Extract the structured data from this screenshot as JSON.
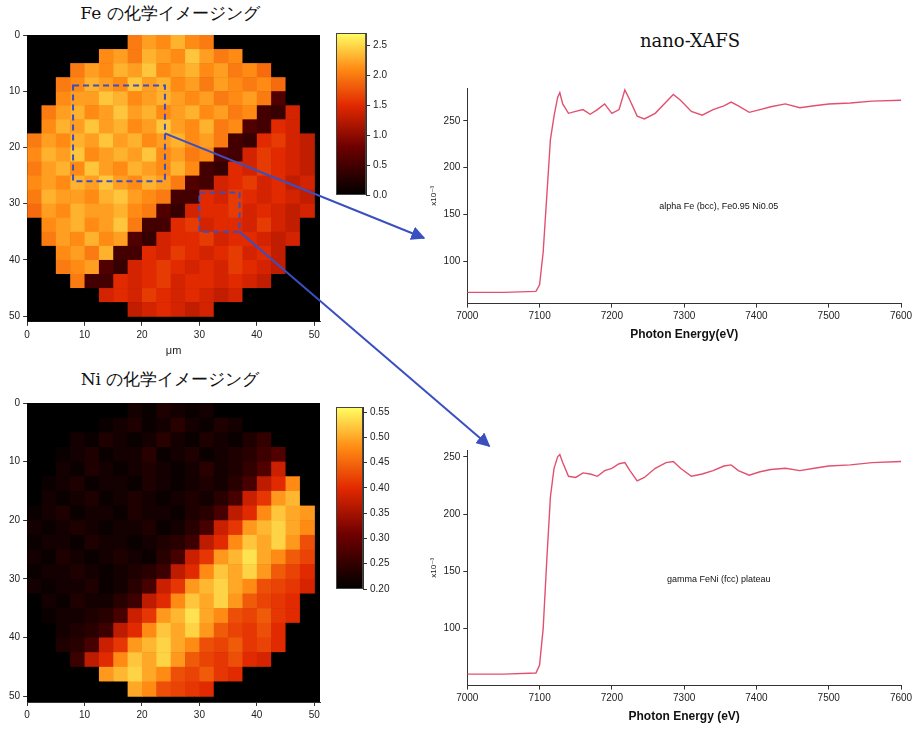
{
  "chart_data": [
    {
      "type": "heatmap",
      "title": "Fe の化学イメージング",
      "x_label": "μm",
      "x": [
        1.25,
        3.75,
        6.25,
        8.75,
        11.25,
        13.75,
        16.25,
        18.75,
        21.25,
        23.75,
        26.25,
        28.75,
        31.25,
        33.75,
        36.25,
        38.75,
        41.25,
        43.75,
        46.25,
        48.75
      ],
      "y": [
        1.25,
        3.75,
        6.25,
        8.75,
        11.25,
        13.75,
        16.25,
        18.75,
        21.25,
        23.75,
        26.25,
        28.75,
        31.25,
        33.75,
        36.25,
        38.75,
        41.25,
        43.75,
        46.25,
        48.75
      ],
      "xlim": [
        0,
        51
      ],
      "ylim": [
        0,
        51
      ],
      "xticks": [
        0,
        10,
        20,
        30,
        40,
        50
      ],
      "yticks": [
        0,
        10,
        20,
        30,
        40,
        50
      ],
      "grid": false,
      "colorbar": {
        "range": [
          0,
          2.7
        ],
        "ticks": [
          {
            "value": 0,
            "label": "0.0"
          },
          0.5,
          {
            "value": 1,
            "label": "1.0"
          },
          1.5,
          {
            "value": 2,
            "label": "2.0"
          },
          2.5
        ]
      },
      "cells": [
        [
          0,
          0,
          0,
          0,
          0,
          0,
          0,
          2.0,
          2.2,
          2.1,
          2.3,
          2.1,
          2.0,
          0,
          0,
          0,
          0,
          0,
          0,
          0
        ],
        [
          0,
          0,
          0,
          0,
          0,
          2.1,
          2.2,
          2.0,
          2.3,
          2.2,
          2.1,
          2.4,
          2.2,
          2.0,
          2.1,
          0,
          0,
          0,
          0,
          0
        ],
        [
          0,
          0,
          0,
          2.0,
          2.2,
          2.1,
          2.3,
          2.2,
          2.4,
          2.1,
          2.2,
          2.3,
          2.1,
          2.2,
          2.0,
          2.1,
          1.9,
          0,
          0,
          0
        ],
        [
          0,
          0,
          2.0,
          2.1,
          2.3,
          2.2,
          2.1,
          2.4,
          2.2,
          2.3,
          2.1,
          2.2,
          2.0,
          2.2,
          2.1,
          2.0,
          2.1,
          1.9,
          0,
          0
        ],
        [
          0,
          0,
          2.1,
          2.2,
          2.2,
          2.4,
          2.3,
          2.1,
          2.2,
          2.3,
          2.2,
          2.1,
          2.2,
          2.0,
          2.1,
          2.2,
          2.0,
          0.6,
          0,
          0
        ],
        [
          0,
          2.0,
          2.2,
          2.3,
          2.1,
          2.2,
          2.4,
          2.2,
          2.3,
          2.1,
          2.2,
          2.3,
          2.1,
          2.2,
          2.0,
          2.1,
          0.5,
          0.4,
          1.4,
          0
        ],
        [
          0,
          2.1,
          2.3,
          2.2,
          2.4,
          2.2,
          2.3,
          2.1,
          2.2,
          2.4,
          2.2,
          2.1,
          2.3,
          2.0,
          2.1,
          0.6,
          0.5,
          1.5,
          1.4,
          0
        ],
        [
          2.0,
          2.2,
          2.1,
          2.3,
          2.2,
          2.4,
          2.2,
          2.3,
          2.1,
          2.2,
          2.3,
          2.1,
          2.2,
          2.0,
          0.5,
          0.4,
          1.5,
          1.6,
          1.4,
          1.3
        ],
        [
          2.1,
          2.3,
          2.2,
          2.4,
          2.1,
          2.2,
          2.3,
          2.2,
          2.4,
          2.1,
          2.2,
          2.0,
          2.1,
          0.6,
          0.5,
          1.4,
          1.6,
          1.5,
          1.4,
          1.3
        ],
        [
          2.0,
          2.2,
          2.3,
          2.1,
          2.4,
          2.2,
          2.1,
          2.3,
          2.2,
          2.1,
          2.3,
          2.1,
          0.5,
          0.4,
          1.5,
          1.4,
          1.6,
          1.5,
          1.4,
          1.3
        ],
        [
          2.1,
          2.2,
          2.1,
          2.3,
          2.2,
          2.4,
          2.2,
          2.1,
          2.3,
          2.2,
          2.0,
          0.6,
          0.5,
          1.4,
          1.5,
          1.6,
          1.4,
          1.5,
          1.3,
          1.4
        ],
        [
          2.0,
          2.3,
          2.2,
          2.2,
          2.1,
          2.3,
          2.4,
          2.2,
          2.1,
          2.0,
          0.5,
          0.5,
          1.5,
          1.4,
          1.6,
          1.5,
          1.4,
          1.5,
          1.4,
          1.3
        ],
        [
          1.9,
          2.2,
          2.1,
          2.3,
          2.2,
          2.2,
          2.3,
          2.1,
          2.0,
          0.6,
          0.4,
          1.4,
          1.5,
          1.5,
          1.6,
          1.4,
          1.5,
          1.4,
          1.3,
          1.4
        ],
        [
          0,
          2.1,
          2.2,
          2.3,
          2.1,
          2.2,
          2.4,
          2.0,
          0.5,
          0.5,
          1.5,
          1.6,
          1.4,
          1.5,
          1.5,
          1.4,
          1.6,
          1.4,
          1.3,
          0
        ],
        [
          0,
          2.0,
          2.2,
          2.1,
          2.3,
          2.1,
          2.2,
          0.6,
          0.4,
          1.4,
          1.5,
          1.5,
          1.6,
          1.4,
          1.5,
          1.5,
          1.4,
          1.3,
          1.4,
          0
        ],
        [
          0,
          0,
          2.1,
          2.2,
          2.0,
          2.3,
          0.5,
          0.5,
          1.5,
          1.4,
          1.6,
          1.5,
          1.4,
          1.5,
          1.6,
          1.4,
          1.5,
          1.3,
          0,
          0
        ],
        [
          0,
          0,
          2.0,
          2.1,
          2.2,
          0.6,
          0.4,
          1.4,
          1.5,
          1.6,
          1.5,
          1.4,
          1.5,
          1.4,
          1.6,
          1.5,
          1.4,
          1.3,
          0,
          0
        ],
        [
          0,
          0,
          0,
          2.0,
          0.5,
          0.5,
          1.5,
          1.4,
          1.5,
          1.6,
          1.4,
          1.5,
          1.5,
          1.4,
          1.5,
          1.4,
          1.3,
          0,
          0,
          0
        ],
        [
          0,
          0,
          0,
          0,
          0,
          1.4,
          1.5,
          1.4,
          1.6,
          1.5,
          1.4,
          1.5,
          1.4,
          1.3,
          1.4,
          0,
          0,
          0,
          0,
          0
        ],
        [
          0,
          0,
          0,
          0,
          0,
          0,
          0,
          1.3,
          1.4,
          1.5,
          1.4,
          1.3,
          1.4,
          0,
          0,
          0,
          0,
          0,
          0,
          0
        ]
      ]
    },
    {
      "type": "heatmap",
      "title": "Ni の化学イメージング",
      "x": [
        1.25,
        3.75,
        6.25,
        8.75,
        11.25,
        13.75,
        16.25,
        18.75,
        21.25,
        23.75,
        26.25,
        28.75,
        31.25,
        33.75,
        36.25,
        38.75,
        41.25,
        43.75,
        46.25,
        48.75
      ],
      "y": [
        1.25,
        3.75,
        6.25,
        8.75,
        11.25,
        13.75,
        16.25,
        18.75,
        21.25,
        23.75,
        26.25,
        28.75,
        31.25,
        33.75,
        36.25,
        38.75,
        41.25,
        43.75,
        46.25,
        48.75
      ],
      "xlim": [
        0,
        51
      ],
      "ylim": [
        0,
        51
      ],
      "xticks": [
        0,
        10,
        20,
        30,
        40,
        50
      ],
      "yticks": [
        0,
        10,
        20,
        30,
        40,
        50
      ],
      "grid": false,
      "colorbar": {
        "range": [
          0.2,
          0.56
        ],
        "ticks": [
          {
            "value": 0.2,
            "label": "0.20"
          },
          0.25,
          {
            "value": 0.3,
            "label": "0.30"
          },
          0.35,
          {
            "value": 0.4,
            "label": "0.40"
          },
          0.45,
          {
            "value": 0.5,
            "label": "0.50"
          },
          0.55
        ]
      },
      "cells": [
        [
          0.2,
          0.2,
          0.2,
          0.2,
          0.2,
          0.2,
          0.2,
          0.22,
          0.21,
          0.23,
          0.22,
          0.21,
          0.22,
          0.2,
          0.2,
          0.2,
          0.2,
          0.2,
          0.2,
          0.2
        ],
        [
          0.2,
          0.2,
          0.2,
          0.2,
          0.2,
          0.21,
          0.22,
          0.23,
          0.21,
          0.22,
          0.24,
          0.22,
          0.21,
          0.23,
          0.22,
          0.2,
          0.2,
          0.2,
          0.2,
          0.2
        ],
        [
          0.2,
          0.2,
          0.2,
          0.22,
          0.21,
          0.23,
          0.22,
          0.21,
          0.22,
          0.24,
          0.22,
          0.21,
          0.23,
          0.22,
          0.21,
          0.23,
          0.25,
          0.2,
          0.2,
          0.2
        ],
        [
          0.2,
          0.2,
          0.21,
          0.22,
          0.23,
          0.21,
          0.22,
          0.22,
          0.24,
          0.21,
          0.22,
          0.23,
          0.21,
          0.22,
          0.23,
          0.24,
          0.26,
          0.28,
          0.2,
          0.2
        ],
        [
          0.2,
          0.2,
          0.22,
          0.21,
          0.23,
          0.22,
          0.21,
          0.22,
          0.23,
          0.22,
          0.21,
          0.22,
          0.24,
          0.22,
          0.23,
          0.25,
          0.28,
          0.38,
          0.2,
          0.2
        ],
        [
          0.2,
          0.21,
          0.22,
          0.23,
          0.21,
          0.22,
          0.22,
          0.21,
          0.23,
          0.22,
          0.21,
          0.22,
          0.23,
          0.22,
          0.24,
          0.27,
          0.37,
          0.4,
          0.48,
          0.2
        ],
        [
          0.2,
          0.22,
          0.21,
          0.22,
          0.23,
          0.21,
          0.22,
          0.23,
          0.22,
          0.21,
          0.22,
          0.23,
          0.22,
          0.24,
          0.27,
          0.38,
          0.41,
          0.49,
          0.51,
          0.2
        ],
        [
          0.21,
          0.22,
          0.23,
          0.21,
          0.22,
          0.22,
          0.21,
          0.23,
          0.22,
          0.22,
          0.21,
          0.23,
          0.24,
          0.27,
          0.37,
          0.4,
          0.48,
          0.52,
          0.5,
          0.49
        ],
        [
          0.22,
          0.21,
          0.22,
          0.23,
          0.22,
          0.21,
          0.22,
          0.22,
          0.23,
          0.21,
          0.22,
          0.24,
          0.27,
          0.38,
          0.41,
          0.49,
          0.51,
          0.53,
          0.5,
          0.48
        ],
        [
          0.21,
          0.22,
          0.22,
          0.21,
          0.23,
          0.22,
          0.22,
          0.21,
          0.22,
          0.23,
          0.24,
          0.26,
          0.37,
          0.4,
          0.48,
          0.52,
          0.5,
          0.53,
          0.49,
          0.43
        ],
        [
          0.22,
          0.21,
          0.23,
          0.22,
          0.21,
          0.22,
          0.23,
          0.22,
          0.21,
          0.24,
          0.27,
          0.38,
          0.41,
          0.49,
          0.51,
          0.54,
          0.5,
          0.48,
          0.44,
          0.42
        ],
        [
          0.21,
          0.22,
          0.22,
          0.23,
          0.22,
          0.21,
          0.22,
          0.23,
          0.24,
          0.26,
          0.37,
          0.4,
          0.48,
          0.52,
          0.5,
          0.53,
          0.49,
          0.44,
          0.42,
          0.4
        ],
        [
          0.22,
          0.21,
          0.22,
          0.22,
          0.23,
          0.21,
          0.22,
          0.24,
          0.27,
          0.38,
          0.41,
          0.49,
          0.51,
          0.53,
          0.5,
          0.48,
          0.43,
          0.42,
          0.41,
          0.39
        ],
        [
          0.2,
          0.22,
          0.21,
          0.23,
          0.22,
          0.22,
          0.24,
          0.26,
          0.37,
          0.4,
          0.48,
          0.52,
          0.5,
          0.53,
          0.49,
          0.44,
          0.42,
          0.41,
          0.4,
          0.2
        ],
        [
          0.2,
          0.21,
          0.22,
          0.22,
          0.23,
          0.24,
          0.27,
          0.38,
          0.41,
          0.49,
          0.51,
          0.54,
          0.5,
          0.48,
          0.43,
          0.42,
          0.44,
          0.41,
          0.4,
          0.2
        ],
        [
          0.2,
          0.2,
          0.22,
          0.23,
          0.24,
          0.26,
          0.37,
          0.4,
          0.48,
          0.52,
          0.5,
          0.53,
          0.49,
          0.44,
          0.42,
          0.41,
          0.43,
          0.4,
          0.2,
          0.2
        ],
        [
          0.2,
          0.2,
          0.23,
          0.24,
          0.27,
          0.38,
          0.41,
          0.49,
          0.51,
          0.53,
          0.5,
          0.48,
          0.43,
          0.42,
          0.44,
          0.41,
          0.42,
          0.4,
          0.2,
          0.2
        ],
        [
          0.2,
          0.2,
          0.2,
          0.26,
          0.37,
          0.4,
          0.48,
          0.52,
          0.5,
          0.53,
          0.49,
          0.44,
          0.42,
          0.41,
          0.43,
          0.4,
          0.39,
          0.2,
          0.2,
          0.2
        ],
        [
          0.2,
          0.2,
          0.2,
          0.2,
          0.2,
          0.49,
          0.51,
          0.53,
          0.5,
          0.48,
          0.43,
          0.42,
          0.44,
          0.41,
          0.4,
          0.2,
          0.2,
          0.2,
          0.2,
          0.2
        ],
        [
          0.2,
          0.2,
          0.2,
          0.2,
          0.2,
          0.2,
          0.2,
          0.5,
          0.48,
          0.43,
          0.42,
          0.41,
          0.4,
          0.2,
          0.2,
          0.2,
          0.2,
          0.2,
          0.2,
          0.2
        ]
      ]
    },
    {
      "type": "line",
      "title": "nano-XAFS",
      "x_label": "Photon Energy(eV)",
      "y_label": "x10⁻³",
      "annotation": "alpha Fe (bcc), Fe0.95 Ni0.05",
      "x": [
        7000,
        7050,
        7095,
        7100,
        7105,
        7110,
        7115,
        7120,
        7125,
        7128,
        7132,
        7140,
        7150,
        7160,
        7170,
        7180,
        7190,
        7200,
        7210,
        7218,
        7225,
        7235,
        7245,
        7260,
        7275,
        7285,
        7295,
        7310,
        7325,
        7340,
        7355,
        7365,
        7375,
        7390,
        7405,
        7420,
        7440,
        7460,
        7480,
        7500,
        7530,
        7560,
        7600
      ],
      "values": [
        67,
        67,
        68,
        75,
        110,
        170,
        230,
        255,
        275,
        280,
        268,
        258,
        260,
        262,
        257,
        262,
        268,
        258,
        262,
        283,
        272,
        255,
        252,
        258,
        270,
        278,
        272,
        260,
        256,
        262,
        266,
        270,
        266,
        259,
        262,
        265,
        268,
        264,
        266,
        268,
        269,
        271,
        272
      ],
      "color": "#e2506f",
      "line_style": "solid",
      "grid": false,
      "xlim": [
        7000,
        7600
      ],
      "ylim": [
        55,
        285
      ],
      "xticks": [
        7000,
        7100,
        7200,
        7300,
        7400,
        7500,
        7600
      ],
      "yticks": [
        100,
        150,
        200,
        250
      ]
    },
    {
      "type": "line",
      "x_label": "Photon Energy (eV)",
      "y_label": "x10⁻³",
      "annotation": "gamma FeNi (fcc) plateau",
      "x": [
        7000,
        7050,
        7095,
        7100,
        7105,
        7110,
        7115,
        7120,
        7125,
        7128,
        7132,
        7140,
        7150,
        7160,
        7170,
        7180,
        7190,
        7200,
        7210,
        7218,
        7225,
        7235,
        7245,
        7260,
        7275,
        7285,
        7295,
        7310,
        7325,
        7340,
        7355,
        7365,
        7375,
        7390,
        7405,
        7420,
        7440,
        7460,
        7480,
        7500,
        7530,
        7560,
        7600
      ],
      "values": [
        60,
        60,
        61,
        68,
        100,
        160,
        215,
        240,
        250,
        252,
        245,
        233,
        232,
        236,
        235,
        233,
        238,
        240,
        244,
        245,
        238,
        229,
        232,
        240,
        245,
        246,
        240,
        233,
        235,
        238,
        242,
        243,
        238,
        234,
        237,
        239,
        240,
        238,
        240,
        242,
        243,
        245,
        246
      ],
      "color": "#e2506f",
      "line_style": "solid",
      "grid": false,
      "xlim": [
        7000,
        7600
      ],
      "ylim": [
        50,
        256
      ],
      "xticks": [
        7000,
        7100,
        7200,
        7300,
        7400,
        7500,
        7600
      ],
      "yticks": [
        100,
        150,
        200,
        250
      ]
    }
  ]
}
